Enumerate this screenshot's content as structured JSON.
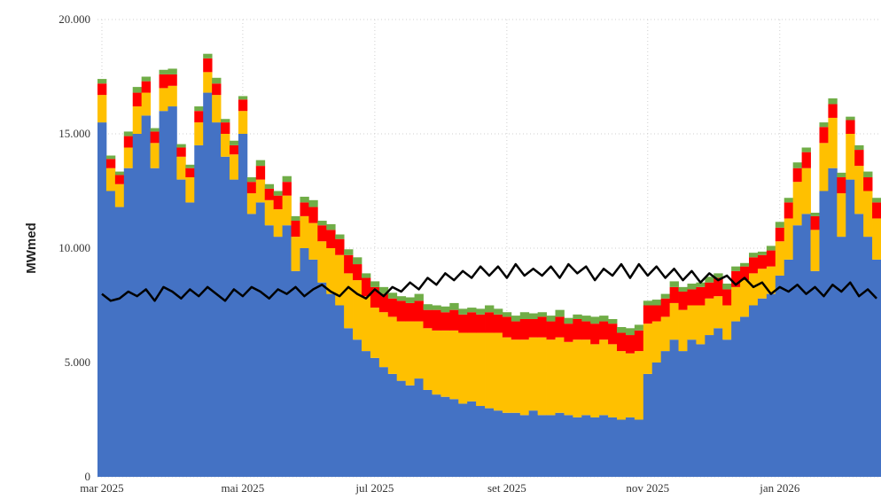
{
  "chart_data": {
    "type": "bar",
    "stacked": true,
    "y_label": "MWmed",
    "ylim": [
      0,
      20000
    ],
    "yticks": [
      0,
      {
        "value": 5000,
        "label": "5.000"
      },
      {
        "value": 10000,
        "label": "10.000"
      },
      {
        "value": 15000,
        "label": "15.000"
      },
      {
        "value": 20000,
        "label": "20.000"
      }
    ],
    "grid": true,
    "categories": [
      "mar 2025",
      null,
      null,
      null,
      null,
      null,
      null,
      null,
      null,
      null,
      null,
      null,
      null,
      null,
      null,
      null,
      "mai 2025",
      null,
      null,
      null,
      null,
      null,
      null,
      null,
      null,
      null,
      null,
      null,
      null,
      null,
      null,
      "jul 2025",
      null,
      null,
      null,
      null,
      null,
      null,
      null,
      null,
      null,
      null,
      null,
      null,
      null,
      null,
      "set 2025",
      null,
      null,
      null,
      null,
      null,
      null,
      null,
      null,
      null,
      null,
      null,
      null,
      null,
      null,
      null,
      "nov 2025",
      null,
      null,
      null,
      null,
      null,
      null,
      null,
      null,
      null,
      null,
      null,
      null,
      null,
      null,
      "jan 2026",
      null,
      null,
      null,
      null,
      null,
      null,
      null,
      null,
      null,
      null,
      null
    ],
    "series": [
      {
        "color": "#4472c4",
        "values": [
          15500,
          12500,
          11800,
          13500,
          15000,
          15800,
          13500,
          16000,
          16200,
          13000,
          12000,
          14500,
          16800,
          15500,
          14000,
          13000,
          15000,
          11500,
          12000,
          11000,
          10500,
          11000,
          9000,
          10000,
          9500,
          8500,
          8000,
          7500,
          6500,
          6000,
          5500,
          5200,
          4800,
          4500,
          4200,
          4000,
          4300,
          3800,
          3600,
          3500,
          3400,
          3200,
          3300,
          3100,
          3000,
          2900,
          2800,
          2800,
          2700,
          2900,
          2700,
          2700,
          2800,
          2700,
          2600,
          2700,
          2600,
          2700,
          2600,
          2500,
          2600,
          2500,
          4500,
          5000,
          5500,
          6000,
          5500,
          6000,
          5800,
          6200,
          6500,
          6000,
          6800,
          7000,
          7500,
          7800,
          8000,
          8800,
          9500,
          11000,
          11500,
          9000,
          12500,
          13500,
          10500,
          13000,
          11500,
          10500,
          9500
        ]
      },
      {
        "color": "#ffc000",
        "values": [
          1200,
          1000,
          1000,
          900,
          1200,
          1000,
          1100,
          1000,
          900,
          1000,
          1100,
          1000,
          900,
          1200,
          1000,
          1100,
          1000,
          900,
          1000,
          1100,
          1200,
          1300,
          1500,
          1400,
          1600,
          1800,
          2000,
          2200,
          2400,
          2600,
          2400,
          2200,
          2400,
          2500,
          2600,
          2800,
          2500,
          2700,
          2800,
          2900,
          3000,
          3100,
          3000,
          3200,
          3300,
          3400,
          3300,
          3200,
          3300,
          3200,
          3400,
          3300,
          3300,
          3200,
          3400,
          3300,
          3200,
          3300,
          3200,
          3000,
          2800,
          3000,
          2200,
          1800,
          1500,
          1600,
          1800,
          1500,
          1700,
          1600,
          1400,
          1500,
          1500,
          1600,
          1400,
          1300,
          1200,
          1500,
          1800,
          1900,
          2000,
          1800,
          2100,
          2200,
          1900,
          2000,
          2100,
          2000,
          1800
        ]
      },
      {
        "color": "#ff0000",
        "values": [
          500,
          400,
          400,
          500,
          600,
          500,
          500,
          600,
          500,
          400,
          400,
          500,
          600,
          500,
          500,
          400,
          500,
          500,
          600,
          500,
          600,
          600,
          700,
          600,
          700,
          700,
          800,
          700,
          800,
          700,
          800,
          900,
          800,
          800,
          900,
          800,
          900,
          800,
          900,
          800,
          900,
          800,
          900,
          800,
          900,
          800,
          900,
          800,
          900,
          800,
          900,
          800,
          900,
          800,
          900,
          800,
          900,
          800,
          900,
          800,
          800,
          900,
          800,
          700,
          800,
          700,
          800,
          700,
          800,
          700,
          800,
          700,
          700,
          600,
          700,
          600,
          700,
          600,
          700,
          600,
          700,
          600,
          700,
          600,
          700,
          600,
          700,
          600,
          700
        ]
      },
      {
        "color": "#70ad47",
        "values": [
          200,
          150,
          150,
          200,
          250,
          200,
          150,
          200,
          250,
          150,
          150,
          200,
          200,
          250,
          150,
          200,
          150,
          200,
          250,
          200,
          200,
          250,
          200,
          250,
          300,
          200,
          250,
          200,
          250,
          300,
          200,
          250,
          300,
          250,
          200,
          250,
          300,
          250,
          200,
          250,
          300,
          250,
          200,
          250,
          300,
          250,
          200,
          250,
          300,
          250,
          200,
          250,
          300,
          250,
          200,
          250,
          300,
          250,
          200,
          250,
          300,
          250,
          200,
          250,
          200,
          250,
          200,
          250,
          200,
          250,
          200,
          250,
          200,
          150,
          200,
          150,
          200,
          250,
          200,
          250,
          200,
          150,
          200,
          250,
          200,
          150,
          200,
          250,
          200
        ]
      },
      {
        "type": "line",
        "color": "#000000",
        "values": [
          8000,
          7700,
          7800,
          8100,
          7900,
          8200,
          7700,
          8300,
          8100,
          7800,
          8200,
          7900,
          8300,
          8000,
          7700,
          8200,
          7900,
          8300,
          8100,
          7800,
          8200,
          8000,
          8300,
          7900,
          8200,
          8400,
          8100,
          7900,
          8300,
          8000,
          7800,
          8200,
          7900,
          8300,
          8100,
          8500,
          8200,
          8700,
          8400,
          8900,
          8600,
          9000,
          8700,
          9200,
          8800,
          9200,
          8700,
          9300,
          8800,
          9100,
          8800,
          9200,
          8700,
          9300,
          8900,
          9200,
          8600,
          9100,
          8800,
          9300,
          8700,
          9300,
          8800,
          9200,
          8700,
          9100,
          8600,
          9000,
          8500,
          8900,
          8600,
          8800,
          8400,
          8700,
          8300,
          8500,
          8000,
          8300,
          8100,
          8400,
          8000,
          8300,
          7900,
          8400,
          8100,
          8500,
          7900,
          8200,
          7800
        ]
      }
    ]
  }
}
